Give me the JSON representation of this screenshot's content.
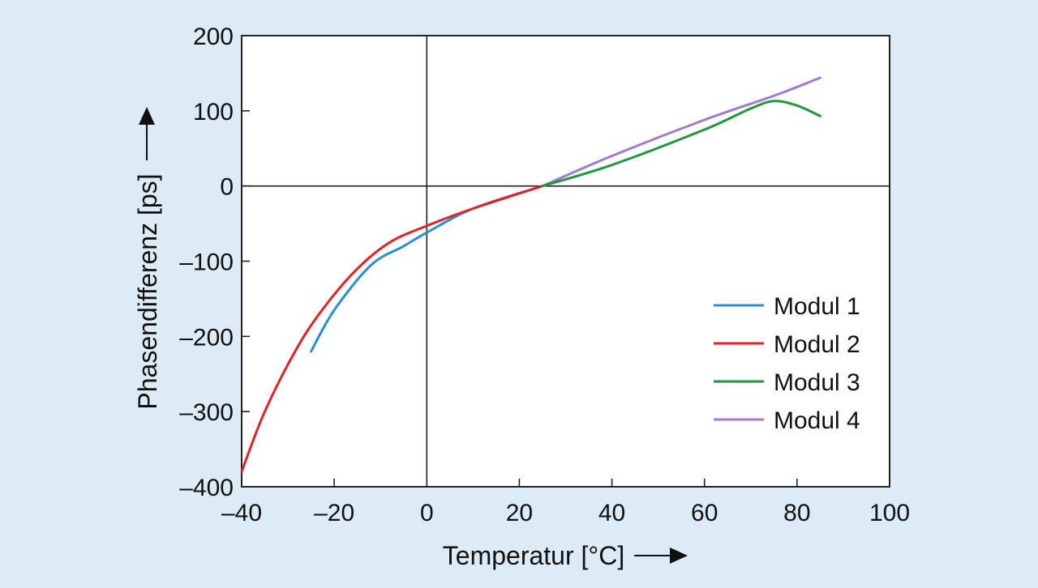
{
  "chart_data": {
    "type": "line",
    "xlabel": "Temperatur [°C]",
    "ylabel": "Phasendifferenz [ps]",
    "xlim": [
      -40,
      100
    ],
    "ylim": [
      -400,
      200
    ],
    "x_ticks": [
      -40,
      -20,
      0,
      20,
      40,
      60,
      80,
      100
    ],
    "y_ticks": [
      -400,
      -300,
      -200,
      -100,
      0,
      100,
      200
    ],
    "x_tick_labels": [
      "–40",
      "–20",
      "0",
      "20",
      "40",
      "60",
      "80",
      "100"
    ],
    "y_tick_labels": [
      "–400",
      "–300",
      "–200",
      "–100",
      "0",
      "100",
      "200"
    ],
    "grid": false,
    "zero_lines": true,
    "legend_position": "lower-right",
    "series": [
      {
        "name": "Modul 1",
        "color": "#2a8fd8",
        "x": [
          -25,
          -20,
          -12,
          -5,
          0,
          10,
          25
        ],
        "y": [
          -220,
          -165,
          -105,
          -80,
          -62,
          -30,
          0
        ]
      },
      {
        "name": "Modul 2",
        "color": "#e32222",
        "x": [
          -40,
          -35,
          -28,
          -22,
          -15,
          -8,
          0,
          10,
          25
        ],
        "y": [
          -380,
          -300,
          -215,
          -160,
          -110,
          -75,
          -53,
          -30,
          0
        ]
      },
      {
        "name": "Modul 3",
        "color": "#1e9a3c",
        "x": [
          25,
          40,
          60,
          70,
          75,
          80,
          85
        ],
        "y": [
          0,
          28,
          75,
          103,
          113,
          107,
          93
        ]
      },
      {
        "name": "Modul 4",
        "color": "#a07ad0",
        "x": [
          25,
          40,
          60,
          75,
          85
        ],
        "y": [
          0,
          40,
          88,
          120,
          144
        ]
      }
    ]
  }
}
